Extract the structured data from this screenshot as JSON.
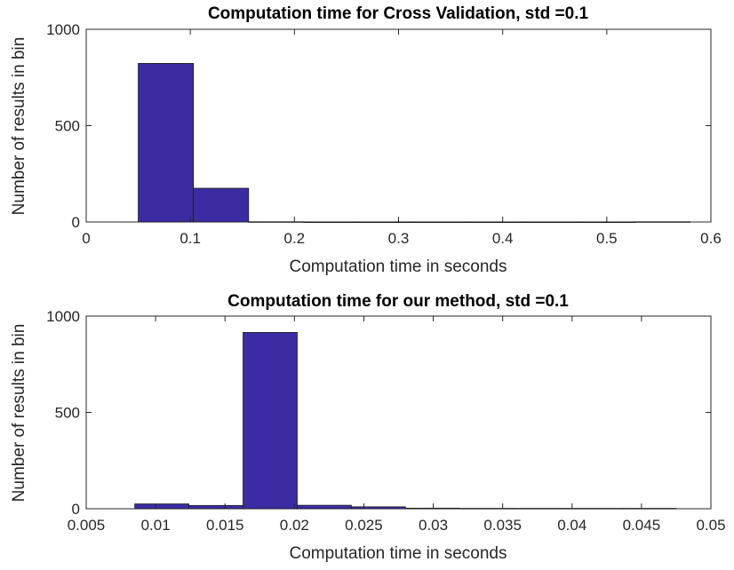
{
  "chart_data": [
    {
      "type": "bar",
      "title": "Computation time for Cross Validation, std =0.1",
      "xlabel": "Computation time in seconds",
      "ylabel": "Number of results in bin",
      "xlim": [
        0,
        0.6
      ],
      "ylim": [
        0,
        1000
      ],
      "xticks": [
        0,
        0.1,
        0.2,
        0.3,
        0.4,
        0.5,
        0.6
      ],
      "xtick_labels": [
        "0",
        "0.1",
        "0.2",
        "0.3",
        "0.4",
        "0.5",
        "0.6"
      ],
      "yticks": [
        0,
        500,
        1000
      ],
      "ytick_labels": [
        "0",
        "500",
        "1000"
      ],
      "grid": false,
      "bar_color": "#3b2ca3",
      "bins": [
        {
          "start": 0.05,
          "end": 0.103,
          "value": 823
        },
        {
          "start": 0.103,
          "end": 0.156,
          "value": 175
        },
        {
          "start": 0.156,
          "end": 0.209,
          "value": 1
        },
        {
          "start": 0.209,
          "end": 0.262,
          "value": 0
        },
        {
          "start": 0.262,
          "end": 0.315,
          "value": 0
        },
        {
          "start": 0.315,
          "end": 0.368,
          "value": 0
        },
        {
          "start": 0.368,
          "end": 0.421,
          "value": 0
        },
        {
          "start": 0.421,
          "end": 0.474,
          "value": 0
        },
        {
          "start": 0.474,
          "end": 0.527,
          "value": 0
        },
        {
          "start": 0.527,
          "end": 0.58,
          "value": 1
        }
      ]
    },
    {
      "type": "bar",
      "title": "Computation time for our method, std =0.1",
      "xlabel": "Computation time in seconds",
      "ylabel": "Number of results in bin",
      "xlim": [
        0.005,
        0.05
      ],
      "ylim": [
        0,
        1000
      ],
      "xticks": [
        0.005,
        0.01,
        0.015,
        0.02,
        0.025,
        0.03,
        0.035,
        0.04,
        0.045,
        0.05
      ],
      "xtick_labels": [
        "0.005",
        "0.01",
        "0.015",
        "0.02",
        "0.025",
        "0.03",
        "0.035",
        "0.04",
        "0.045",
        "0.05"
      ],
      "yticks": [
        0,
        500,
        1000
      ],
      "ytick_labels": [
        "0",
        "500",
        "1000"
      ],
      "grid": false,
      "bar_color": "#3b2ca3",
      "bins": [
        {
          "start": 0.0085,
          "end": 0.0124,
          "value": 25
        },
        {
          "start": 0.0124,
          "end": 0.0163,
          "value": 17
        },
        {
          "start": 0.0163,
          "end": 0.0202,
          "value": 915
        },
        {
          "start": 0.0202,
          "end": 0.0241,
          "value": 18
        },
        {
          "start": 0.0241,
          "end": 0.028,
          "value": 10
        },
        {
          "start": 0.028,
          "end": 0.0319,
          "value": 3
        },
        {
          "start": 0.0319,
          "end": 0.0358,
          "value": 2
        },
        {
          "start": 0.0358,
          "end": 0.0397,
          "value": 2
        },
        {
          "start": 0.0397,
          "end": 0.0436,
          "value": 2
        },
        {
          "start": 0.0436,
          "end": 0.0475,
          "value": 2
        }
      ]
    }
  ]
}
